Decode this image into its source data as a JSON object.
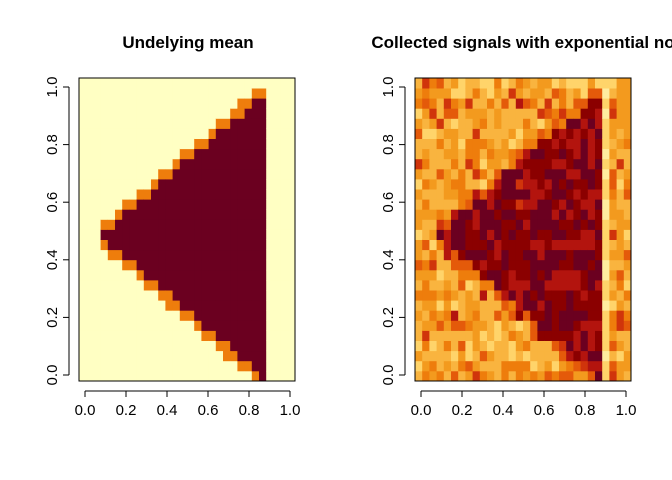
{
  "chart_data": [
    {
      "type": "heatmap",
      "title": "Undelying mean",
      "xlabel": "",
      "ylabel": "",
      "xlim": [
        0,
        1
      ],
      "ylim": [
        0,
        1
      ],
      "x_ticks": [
        "0.0",
        "0.2",
        "0.4",
        "0.6",
        "0.8",
        "1.0"
      ],
      "y_ticks": [
        "0.0",
        "0.2",
        "0.4",
        "0.6",
        "0.8",
        "1.0"
      ],
      "grid": false,
      "colors": {
        "low": "#FFFFC3",
        "high": "#6B0020",
        "palette": "heat (light yellow to dark red)"
      },
      "pattern": "triangle of high values with vertex near x=0.10, y=0.48 opening to the right up to x=0.88; low values elsewhere"
    },
    {
      "type": "heatmap",
      "title": "Collected signals with exponential no",
      "xlabel": "",
      "ylabel": "",
      "xlim": [
        0,
        1
      ],
      "ylim": [
        0,
        1
      ],
      "x_ticks": [
        "0.0",
        "0.2",
        "0.4",
        "0.6",
        "0.8",
        "1.0"
      ],
      "y_ticks": [
        "0.0",
        "0.2",
        "0.4",
        "0.6",
        "0.8",
        "1.0"
      ],
      "grid": false,
      "colors": {
        "low": "#FFF3C0",
        "high": "#8B0000",
        "palette": "heat (light yellow to dark red)"
      },
      "pattern": "noisy version of the triangle signal with exponential noise"
    }
  ]
}
